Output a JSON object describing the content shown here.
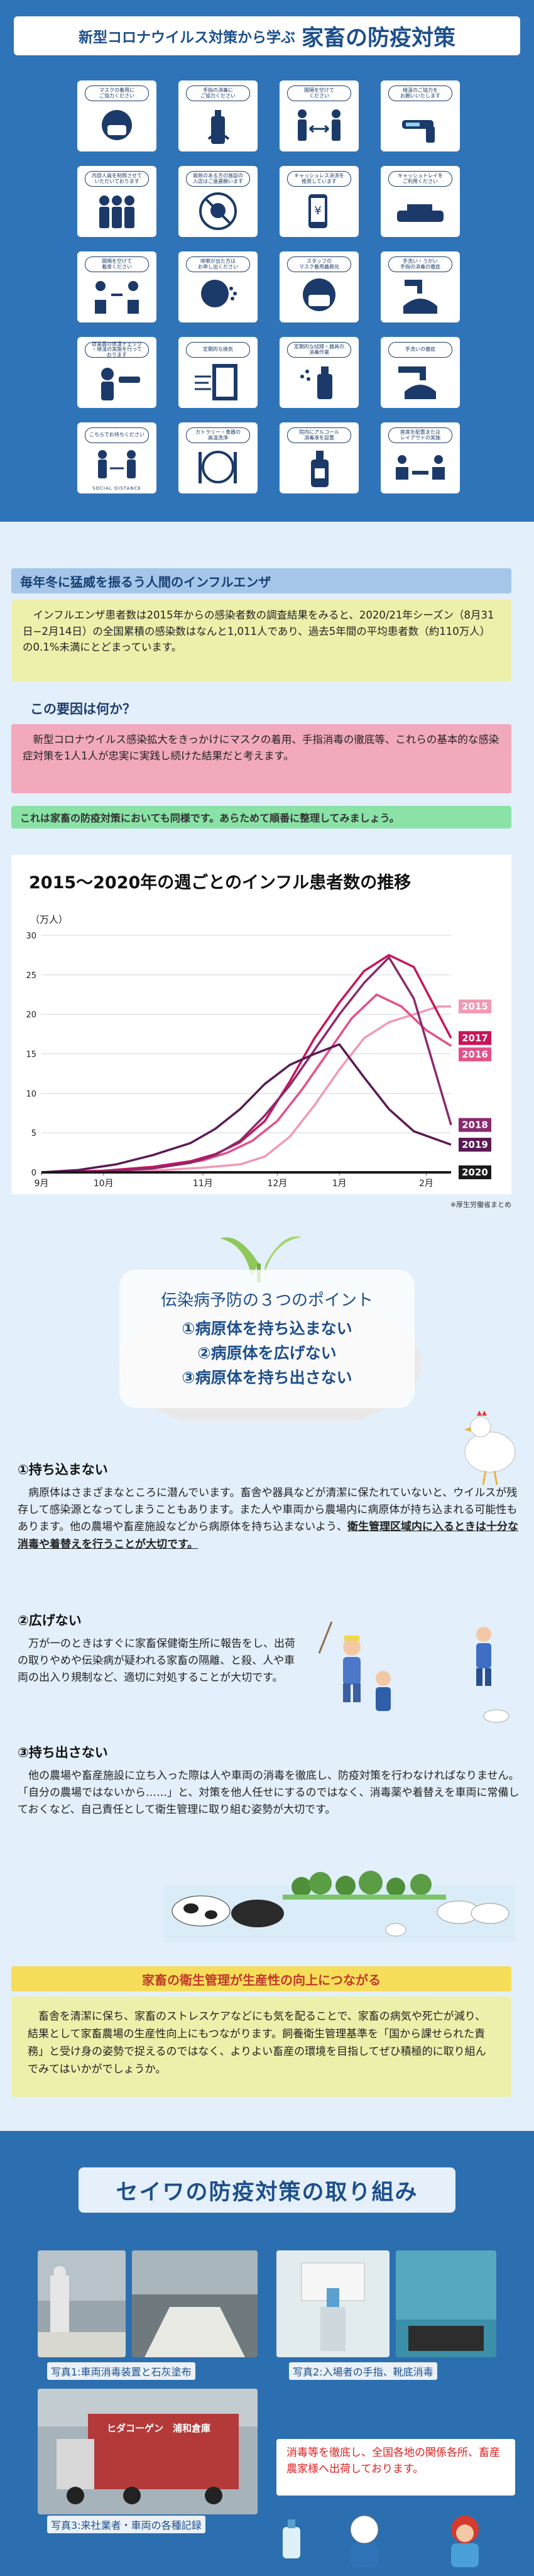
{
  "header": {
    "title_prefix": "新型コロナウイルス対策から学ぶ",
    "title_main": "家畜の防疫対策"
  },
  "pictograms": [
    {
      "label": "マスクの着用に\nご協力ください",
      "icon": "mask-icon"
    },
    {
      "label": "手指の消毒に\nご協力ください",
      "icon": "sanitizer-icon"
    },
    {
      "label": "間隔を空けて\nください",
      "icon": "distance-icon"
    },
    {
      "label": "検温のご協力を\nお願いいたします",
      "icon": "thermometer-icon"
    },
    {
      "label": "内部人員を制限させて\nいただいております",
      "icon": "people-limit-icon"
    },
    {
      "label": "発熱のある方の施設の\n入店はご遠慮願います",
      "icon": "no-fever-icon"
    },
    {
      "label": "キャッシュレス決済を\n推奨しています",
      "icon": "cashless-icon"
    },
    {
      "label": "キャッシュトレイを\nご利用ください",
      "icon": "cash-tray-icon"
    },
    {
      "label": "間隔を空けて\n着席ください",
      "icon": "seating-icon"
    },
    {
      "label": "咳嗽が出た方は\nお申し出ください",
      "icon": "cough-icon"
    },
    {
      "label": "スタッフの\nマスク着用義務化",
      "icon": "staff-mask-icon"
    },
    {
      "label": "手洗い・うがい\n手指の消毒の徹底",
      "icon": "handwash-icon"
    },
    {
      "label": "従業員の体温チェック\n・検温の実施を行って\nおります",
      "icon": "staff-temp-icon"
    },
    {
      "label": "定期的な換気",
      "icon": "ventilation-icon"
    },
    {
      "label": "定期的な拭掃・器具の\n消毒作業",
      "icon": "disinfect-spray-icon"
    },
    {
      "label": "手洗いの徹底",
      "icon": "faucet-icon"
    },
    {
      "label": "こちらでお待ちください",
      "icon": "social-distance-icon",
      "bottom": "SOCIAL DISTANCE"
    },
    {
      "label": "カトラリー・食器の\n高温洗浄",
      "icon": "cutlery-icon"
    },
    {
      "label": "院内にアルコール\n消毒液を設置",
      "icon": "alcohol-bottle-icon"
    },
    {
      "label": "座席を配置または\nレイアウトの実施",
      "icon": "seat-layout-icon"
    }
  ],
  "influenza": {
    "heading": "毎年冬に猛威を振るう人間のインフルエンザ",
    "body": "　インフルエンザ患者数は2015年からの感染者数の調査結果をみると、2020/21年シーズン（8月31日−2月14日）の全国累積の感染数はなんと1,011人であり、過去5年間の平均患者数（約110万人）の0.1%未満にとどまっています。",
    "question": "この要因は何か？",
    "answer": "　新型コロナウイルス感染拡大をきっかけにマスクの着用、手指消毒の徹底等、これらの基本的な感染症対策を1人1人が忠実に実践し続けた結果だと考えます。",
    "bridge": "これは家畜の防疫対策においても同様です。あらためて順番に整理してみましょう。"
  },
  "chart_data": {
    "type": "line",
    "title": "2015〜2020年の週ごとのインフル患者数の推移",
    "ylabel": "（万人）",
    "ylim": [
      0,
      30
    ],
    "yticks": [
      0,
      5,
      10,
      15,
      20,
      25,
      30
    ],
    "x_labels": [
      "9月",
      "10月",
      "11月",
      "12月",
      "1月",
      "2月"
    ],
    "x_label_week": [
      0,
      5,
      13,
      19,
      24,
      31
    ],
    "grid": true,
    "source": "※厚生労働省まとめ",
    "series": [
      {
        "name": "2015",
        "color": "#f19ab4",
        "x": [
          0,
          5,
          10,
          13,
          16,
          18,
          20,
          22,
          24,
          26,
          28,
          30,
          32,
          33
        ],
        "y": [
          0,
          0.1,
          0.3,
          0.6,
          1,
          2,
          4.5,
          8.5,
          13,
          17,
          19,
          20,
          21,
          21
        ]
      },
      {
        "name": "2016",
        "color": "#e2508a",
        "x": [
          0,
          5,
          10,
          13,
          15,
          17,
          19,
          21,
          23,
          25,
          27,
          29,
          31,
          33
        ],
        "y": [
          0,
          0.2,
          0.8,
          1.5,
          2.5,
          4,
          6.5,
          10.5,
          15,
          19.5,
          22.5,
          21,
          18,
          16
        ]
      },
      {
        "name": "2017",
        "color": "#c8145a",
        "x": [
          0,
          5,
          9,
          12,
          14,
          16,
          18,
          20,
          22,
          24,
          26,
          28,
          30,
          32,
          33
        ],
        "y": [
          0,
          0.2,
          0.7,
          1.4,
          2.3,
          3.8,
          6.5,
          11.5,
          17,
          21.5,
          25.5,
          27.5,
          26,
          20,
          17
        ]
      },
      {
        "name": "2018",
        "color": "#8a2a6e",
        "x": [
          0,
          5,
          9,
          12,
          14,
          16,
          18,
          20,
          22,
          24,
          26,
          28,
          30,
          33
        ],
        "y": [
          0,
          0.1,
          0.5,
          1.2,
          2.2,
          4,
          7.2,
          11,
          15.5,
          20,
          24,
          27.2,
          22,
          6
        ]
      },
      {
        "name": "2019",
        "color": "#5a1a55",
        "x": [
          0,
          3,
          6,
          9,
          12,
          14,
          16,
          18,
          20,
          22,
          24,
          26,
          28,
          30,
          33
        ],
        "y": [
          0,
          0.3,
          1,
          2.2,
          3.7,
          5.5,
          8,
          11.2,
          13.6,
          15,
          16.2,
          12,
          8,
          5.2,
          3.5
        ]
      },
      {
        "name": "2020",
        "color": "#1a1a1a",
        "x": [
          0,
          6,
          12,
          18,
          24,
          30,
          33
        ],
        "y": [
          0,
          0,
          0,
          0,
          0,
          0,
          0
        ]
      }
    ]
  },
  "points": {
    "title": "伝染病予防の３つのポイント",
    "items": [
      "①病原体を持ち込まない",
      "②病原体を広げない",
      "③病原体を持ち出さない"
    ]
  },
  "sections": [
    {
      "heading": "①持ち込まない",
      "body_plain": "　病原体はさまざまなところに潜んでいます。畜舎や器具などが清潔に保たれていないと、ウイルスが残存して感染源となってしまうこともあります。また人や車両から農場内に病原体が持ち込まれる可能性もあります。他の農場や畜産施設などから病原体を持ち込まないよう、",
      "body_emph": "衛生管理区域内に入るときは十分な消毒や着替えを行うことが大切です。"
    },
    {
      "heading": "②広げない",
      "body": "　万が一のときはすぐに家畜保健衛生所に報告をし、出荷の取りやめや伝染病が疑われる家畜の隔離、と殺、人や車両の出入り規制など、適切に対処することが大切です。"
    },
    {
      "heading": "③持ち出さない",
      "body": "　他の農場や畜産施設に立ち入った際は人や車両の消毒を徹底し、防疫対策を行わなければなりません。「自分の農場ではないから……」と、対策を他人任せにするのではなく、消毒薬や着替えを車両に常備しておくなど、自己責任として衛生管理に取り組む姿勢が大切です。"
    }
  ],
  "hygiene": {
    "heading": "家畜の衛生管理が生産性の向上につながる",
    "body": "　畜舎を清潔に保ち、家畜のストレスケアなどにも気を配ることで、家畜の病気や死亡が減り、結果として家畜農場の生産性向上にもつながります。飼養衛生管理基準を「国から課せられた責務」と受け身の姿勢で捉えるのではなく、よりよい畜産の環境を目指してぜひ積極的に取り組んでみてはいかがでしょうか。"
  },
  "seiwa": {
    "title": "セイワの防疫対策の取り組み",
    "captions": [
      "写真1:車両消毒装置と石灰塗布",
      "写真2:入場者の手指、靴底消毒",
      "写真3:来社業者・車両の各種記録"
    ],
    "truck_text": "ヒダコーゲン　浦和倉庫",
    "notice": "消毒等を徹底し、全国各地の関係各所、畜産農家様へ出荷しております。"
  },
  "colors": {
    "header_bg": "#2f74b8",
    "accent": "#1d4f8c",
    "pink": "#f2a9bc",
    "yellow": "#edf0aa",
    "green": "#8ae2a6"
  }
}
